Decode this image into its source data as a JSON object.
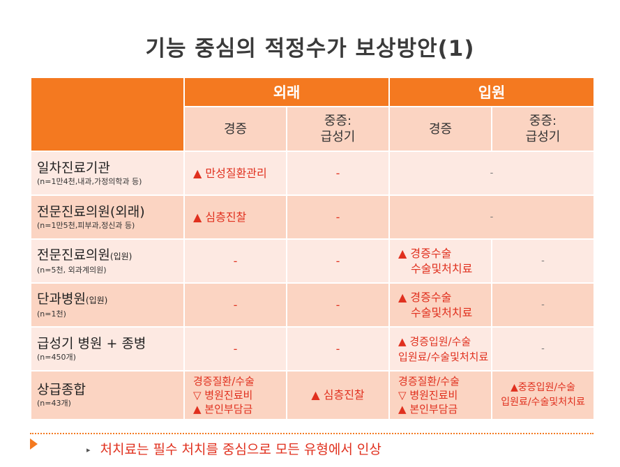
{
  "title": "기능 중심의 적정수가 보상방안(1)",
  "header": {
    "groups": [
      "외래",
      "입원"
    ],
    "subs": [
      [
        "경증"
      ],
      [
        "중증:",
        "급성기"
      ],
      [
        "경증"
      ],
      [
        "중증:",
        "급성기"
      ]
    ]
  },
  "rows": [
    {
      "name": "일차진료기관",
      "name_small": "",
      "note": "(n=1만4천,내과,가정의학과 등)",
      "cells": [
        [
          "▲ 만성질환관리"
        ],
        [
          "-"
        ],
        [
          "-"
        ]
      ]
    },
    {
      "name": "전문진료의원(외래)",
      "name_small": "",
      "note": "(n=1만5천,피부과,정신과 등)",
      "cells": [
        [
          "▲ 심층진찰"
        ],
        [
          "-"
        ],
        [
          "-"
        ]
      ]
    },
    {
      "name": "전문진료의원",
      "name_small": "(입원)",
      "note": "(n=5천, 외과계의원)",
      "cells": [
        [
          "-"
        ],
        [
          "-"
        ],
        [
          "▲ 경증수술",
          "수술및처치료"
        ],
        [
          "-"
        ]
      ]
    },
    {
      "name": "단과병원",
      "name_small": "(입원)",
      "note": "(n=1천)",
      "cells": [
        [
          "-"
        ],
        [
          "-"
        ],
        [
          "▲ 경증수술",
          "수술및처치료"
        ],
        [
          "-"
        ]
      ]
    },
    {
      "name": "급성기 병원 + 종병",
      "name_small": "",
      "note": "(n=450개)",
      "cells": [
        [
          "-"
        ],
        [
          "-"
        ],
        [
          "▲ 경증입원/수술",
          "입원료/수술및처치료"
        ],
        [
          "-"
        ]
      ]
    },
    {
      "name": "상급종합",
      "name_small": "",
      "note": "(n=43개)",
      "cells": [
        [
          "경증질환/수술",
          "▽ 병원진료비",
          "▲ 본인부담금"
        ],
        [
          "▲ 심층진찰"
        ],
        [
          "경증질환/수술",
          "▽ 병원진료비",
          "▲ 본인부담금"
        ],
        [
          "▲중증입원/수술",
          "입원료/수술및처치료"
        ]
      ]
    }
  ],
  "footer_note": "처치료는 필수 처치를 중심으로 모든 유형에서 인상",
  "colors": {
    "accent": "#f47920",
    "header_light": "#fbd4c2",
    "row_light": "#fde9e2",
    "text_red": "#e0301e"
  }
}
